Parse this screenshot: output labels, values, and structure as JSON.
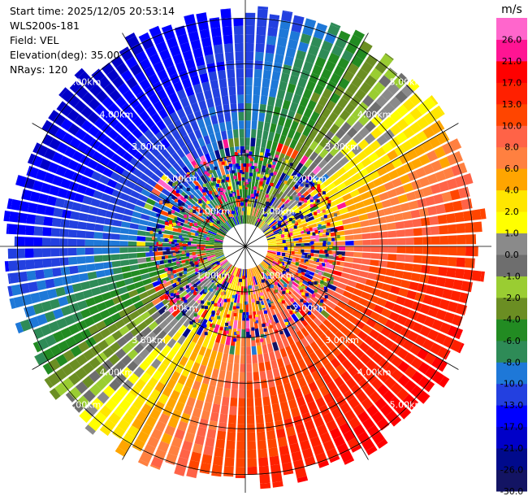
{
  "header": {
    "lines": [
      "Start time: 2025/12/05 20:53:14",
      "WLS200s-181",
      "Field: VEL",
      "Elevation(deg): 35.00",
      "NRays: 120"
    ]
  },
  "chart_data": {
    "type": "heatmap",
    "projection": "polar",
    "title": "",
    "field": "VEL",
    "units": "m/s",
    "n_rays": 120,
    "elevation_deg": 35.0,
    "max_range_km": 5.4,
    "range_ring_labels": [
      "1.00km",
      "2.00km",
      "3.00km",
      "4.00km",
      "5.00km"
    ],
    "colorbar": {
      "unit_label": "m/s",
      "bins": [
        {
          "label": "-30.0",
          "color": "#131463"
        },
        {
          "label": "-26.0",
          "color": "#000a8c"
        },
        {
          "label": "-21.0",
          "color": "#0000c8"
        },
        {
          "label": "-17.0",
          "color": "#0000ff"
        },
        {
          "label": "-13.0",
          "color": "#2340e0"
        },
        {
          "label": "-10.0",
          "color": "#1e78d8"
        },
        {
          "label": "-8.0",
          "color": "#2e8b57"
        },
        {
          "label": "-6.0",
          "color": "#228b22"
        },
        {
          "label": "-4.0",
          "color": "#6b8e23"
        },
        {
          "label": "-2.0",
          "color": "#9acd32"
        },
        {
          "label": "-1.0",
          "color": "#6e6e6e"
        },
        {
          "label": "0.0",
          "color": "#8a8a8a"
        },
        {
          "label": "1.0",
          "color": "#ffff00"
        },
        {
          "label": "2.0",
          "color": "#ffe600"
        },
        {
          "label": "4.0",
          "color": "#ffa500"
        },
        {
          "label": "6.0",
          "color": "#ff8040"
        },
        {
          "label": "8.0",
          "color": "#ff6347"
        },
        {
          "label": "10.0",
          "color": "#ff4500"
        },
        {
          "label": "13.0",
          "color": "#ff2000"
        },
        {
          "label": "17.0",
          "color": "#ff0000"
        },
        {
          "label": "21.0",
          "color": "#ff1493"
        },
        {
          "label": "26.0",
          "color": "#ff66cc"
        }
      ]
    },
    "velocity_pattern": {
      "description_free": true,
      "max_positive_ms": 17.0,
      "max_negative_ms": -17.0,
      "max_positive_azimuth_deg": 135,
      "max_negative_azimuth_deg": 315
    }
  }
}
